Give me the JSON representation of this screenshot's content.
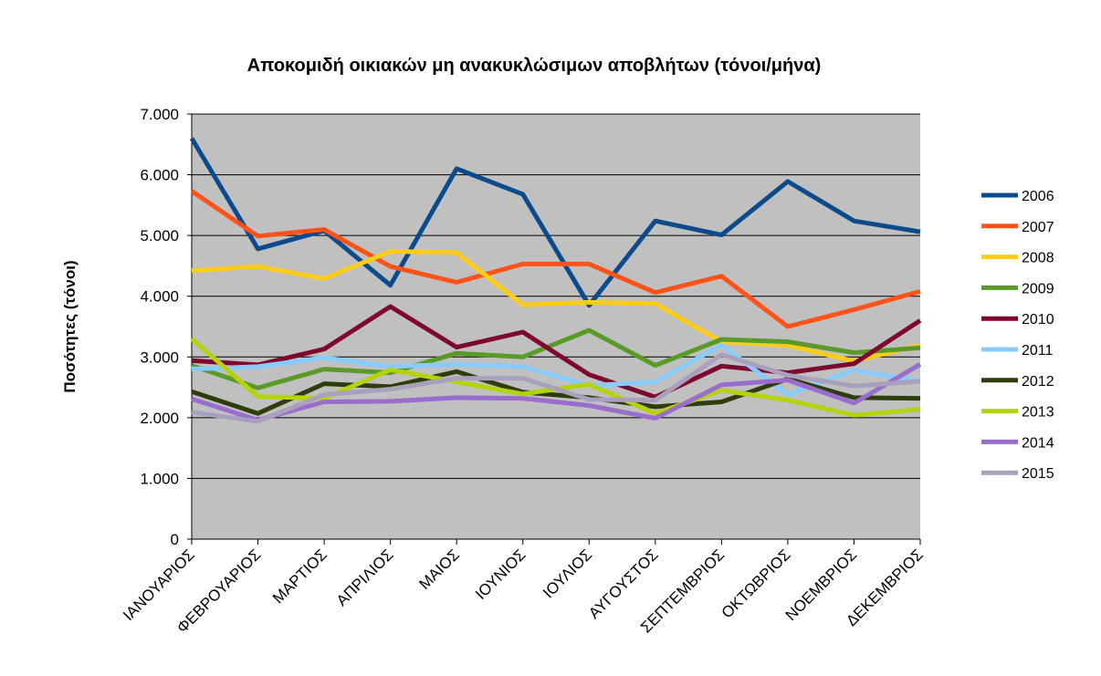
{
  "chart_data": {
    "type": "line",
    "title": "Αποκομιδή οικιακών μη ανακυκλώσιμων αποβλήτων (τόνοι/μήνα)",
    "xlabel": "",
    "ylabel": "Ποσότητες (τόνοι)",
    "ylim": [
      0,
      7000
    ],
    "yticks": [
      0,
      1000,
      2000,
      3000,
      4000,
      5000,
      6000,
      7000
    ],
    "ytick_labels": [
      "0",
      "1.000",
      "2.000",
      "3.000",
      "4.000",
      "5.000",
      "6.000",
      "7.000"
    ],
    "grid": true,
    "legend_position": "right",
    "categories": [
      "ΙΑΝΟΥΑΡΙΟΣ",
      "ΦΕΒΡΟΥΑΡΙΟΣ",
      "ΜΑΡΤΙΟΣ",
      "ΑΠΡΙΛΙΟΣ",
      "ΜΑΙΟΣ",
      "ΙΟΥΝΙΟΣ",
      "ΙΟΥΛΙΟΣ",
      "ΑΥΓΟΥΣΤΟΣ",
      "ΣΕΠΤΕΜΒΡΙΟΣ",
      "ΟΚΤΩΒΡΙΟΣ",
      "ΝΟΕΜΒΡΙΟΣ",
      "ΔΕΚΕΜΒΡΙΟΣ"
    ],
    "series": [
      {
        "name": "2006",
        "color": "#0b4a8b",
        "values": [
          6600,
          4780,
          5080,
          4180,
          6100,
          5680,
          3850,
          5240,
          5010,
          5890,
          5240,
          5060
        ]
      },
      {
        "name": "2007",
        "color": "#ff5319",
        "values": [
          5730,
          4990,
          5100,
          4490,
          4230,
          4530,
          4530,
          4060,
          4330,
          3500,
          3780,
          4080
        ]
      },
      {
        "name": "2008",
        "color": "#ffcc1a",
        "values": [
          4420,
          4490,
          4290,
          4740,
          4720,
          3860,
          3900,
          3880,
          3250,
          3190,
          2930,
          3200
        ]
      },
      {
        "name": "2009",
        "color": "#5a9a28",
        "values": [
          2860,
          2490,
          2800,
          2740,
          3060,
          3000,
          3440,
          2860,
          3290,
          3250,
          3070,
          3150
        ]
      },
      {
        "name": "2010",
        "color": "#7d0a2e",
        "values": [
          2940,
          2870,
          3130,
          3830,
          3160,
          3410,
          2710,
          2340,
          2850,
          2740,
          2890,
          3600
        ]
      },
      {
        "name": "2011",
        "color": "#88ccff",
        "values": [
          2800,
          2840,
          2990,
          2840,
          2880,
          2840,
          2530,
          2590,
          3200,
          2380,
          2780,
          2600
        ]
      },
      {
        "name": "2012",
        "color": "#2e3d0c",
        "values": [
          2430,
          2070,
          2560,
          2510,
          2760,
          2420,
          2330,
          2180,
          2260,
          2640,
          2330,
          2320
        ]
      },
      {
        "name": "2013",
        "color": "#b5d20a",
        "values": [
          3300,
          2350,
          2320,
          2790,
          2590,
          2390,
          2550,
          2070,
          2450,
          2290,
          2040,
          2140
        ]
      },
      {
        "name": "2014",
        "color": "#9a6dcc",
        "values": [
          2310,
          1960,
          2260,
          2270,
          2330,
          2320,
          2200,
          1990,
          2540,
          2620,
          2240,
          2880
        ]
      },
      {
        "name": "2015",
        "color": "#aaa0bd",
        "values": [
          2090,
          1940,
          2380,
          2470,
          2650,
          2650,
          2300,
          2290,
          3040,
          2700,
          2520,
          2600
        ]
      }
    ]
  }
}
